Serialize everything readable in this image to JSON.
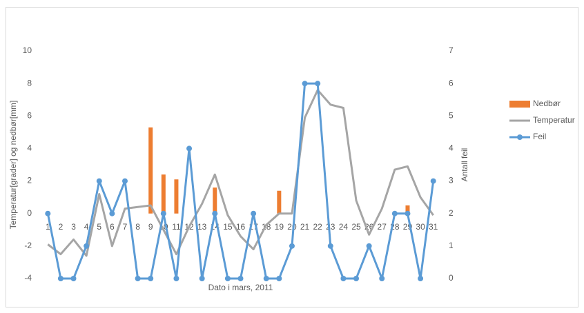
{
  "chart_data": {
    "type": "combo",
    "categories": [
      "1",
      "2",
      "3",
      "4",
      "5",
      "6",
      "7",
      "8",
      "9",
      "10",
      "11",
      "12",
      "13",
      "14",
      "15",
      "16",
      "17",
      "18",
      "19",
      "20",
      "21",
      "22",
      "23",
      "24",
      "25",
      "26",
      "27",
      "28",
      "29",
      "30",
      "31"
    ],
    "x_label": "Dato i mars, 2011",
    "y_label": "Temperatur[grader] og nedbør[mm]",
    "y2_label": "Antall feil",
    "ylim": [
      -4,
      10
    ],
    "yticks": [
      -4,
      -2,
      0,
      2,
      4,
      6,
      8,
      10
    ],
    "y2lim": [
      0,
      7
    ],
    "y2ticks": [
      0,
      1,
      2,
      3,
      4,
      5,
      6,
      7
    ],
    "legend": "right",
    "series": [
      {
        "name": "Nedbør",
        "type": "bar",
        "color": "#ed7d31",
        "values": [
          0,
          0,
          0,
          0,
          0,
          0,
          0,
          0,
          5.3,
          2.4,
          2.1,
          0,
          0,
          1.6,
          0,
          0,
          0,
          0,
          1.4,
          0,
          0,
          0,
          0,
          0,
          0,
          0,
          0,
          0,
          0.5,
          0,
          0
        ]
      },
      {
        "name": "Temperatur",
        "type": "line",
        "color": "#a5a5a5",
        "values": [
          -1.9,
          -2.5,
          -1.6,
          -2.6,
          1.2,
          -2.0,
          0.3,
          0.4,
          0.5,
          -1.0,
          -2.5,
          -0.8,
          0.6,
          2.4,
          -0.1,
          -1.4,
          -2.2,
          -0.7,
          0.0,
          0.0,
          5.9,
          7.6,
          6.7,
          6.5,
          0.8,
          -1.3,
          0.3,
          2.7,
          2.9,
          1.0,
          -0.1
        ]
      },
      {
        "name": "Feil",
        "type": "line-marker",
        "axis": "y2",
        "color": "#5b9bd5",
        "values": [
          2,
          0,
          0,
          1,
          3,
          2,
          3,
          0,
          0,
          2,
          0,
          4,
          0,
          2,
          0,
          0,
          2,
          0,
          0,
          1,
          6,
          6,
          1,
          0,
          0,
          1,
          0,
          2,
          2,
          0,
          3
        ]
      }
    ]
  }
}
